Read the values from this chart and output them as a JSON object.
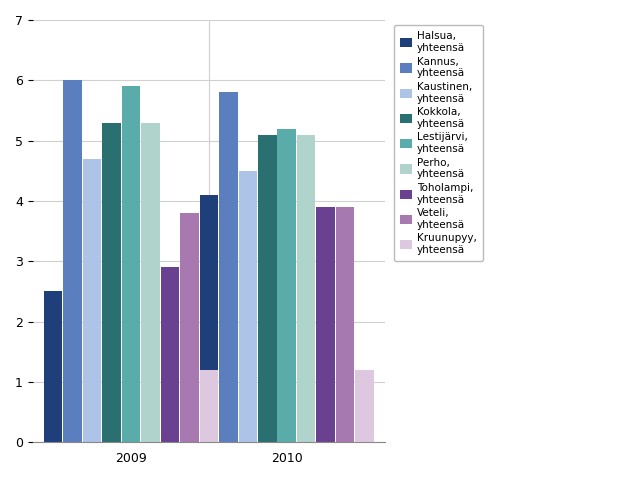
{
  "years": [
    "2009",
    "2010"
  ],
  "series": [
    {
      "label": "Halsua,\nyhteensä",
      "values": [
        2.5,
        4.1
      ],
      "color": "#1e3f7a"
    },
    {
      "label": "Kannus,\nyhteensä",
      "values": [
        6.0,
        5.8
      ],
      "color": "#5b7fbe"
    },
    {
      "label": "Kaustinen,\nyhteensä",
      "values": [
        4.7,
        4.5
      ],
      "color": "#adc4e8"
    },
    {
      "label": "Kokkola,\nyhteensä",
      "values": [
        5.3,
        5.1
      ],
      "color": "#2a7070"
    },
    {
      "label": "Lestijärvi,\nyhteensä",
      "values": [
        5.9,
        5.2
      ],
      "color": "#5aacaa"
    },
    {
      "label": "Perho,\nyhteensä",
      "values": [
        5.3,
        5.1
      ],
      "color": "#b0d4cc"
    },
    {
      "label": "Toholampi,\nyhteensä",
      "values": [
        2.9,
        3.9
      ],
      "color": "#6a4090"
    },
    {
      "label": "Veteli,\nyhteensä",
      "values": [
        3.8,
        3.9
      ],
      "color": "#a878b0"
    },
    {
      "label": "Kruunupyy,\nyhteensä",
      "values": [
        1.2,
        1.2
      ],
      "color": "#ddc8e0"
    }
  ],
  "ylim": [
    0,
    7
  ],
  "yticks": [
    0,
    1,
    2,
    3,
    4,
    5,
    6,
    7
  ],
  "grid_color": "#d0d0d0",
  "background_color": "#ffffff",
  "legend_fontsize": 7.5,
  "tick_fontsize": 9,
  "bar_width": 0.055,
  "group_positions": [
    0.28,
    0.72
  ]
}
